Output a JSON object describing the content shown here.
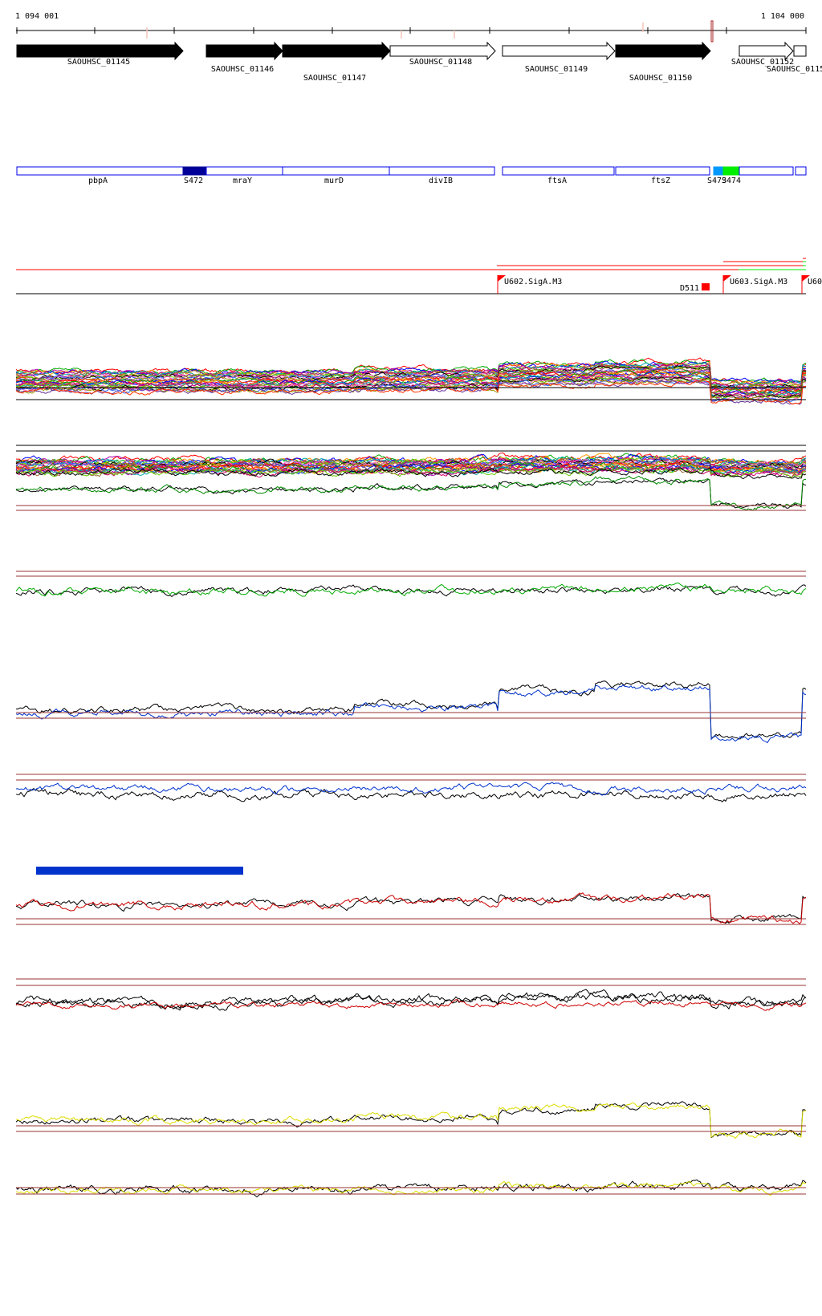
{
  "ruler": {
    "start_label": "1 094 001",
    "end_label": "1 104 000"
  },
  "genes": [
    {
      "label": "SAOUHSC_01145",
      "strand": "filled"
    },
    {
      "label": "SAOUHSC_01146",
      "strand": "filled"
    },
    {
      "label": "SAOUHSC_01147",
      "strand": "filled"
    },
    {
      "label": "SAOUHSC_01148",
      "strand": "open"
    },
    {
      "label": "SAOUHSC_01149",
      "strand": "open"
    },
    {
      "label": "SAOUHSC_01150",
      "strand": "filled"
    },
    {
      "label": "SAOUHSC_01152",
      "strand": "open"
    },
    {
      "label": "SAOUHSC_0115",
      "strand": "open"
    }
  ],
  "features": [
    {
      "label": "pbpA",
      "color": "#ffffff"
    },
    {
      "label": "S472",
      "color": "#000099"
    },
    {
      "label": "mraY",
      "color": "#ffffff"
    },
    {
      "label": "murD",
      "color": "#ffffff"
    },
    {
      "label": "divIB",
      "color": "#ffffff"
    },
    {
      "label": "ftsA",
      "color": "#ffffff"
    },
    {
      "label": "ftsZ",
      "color": "#ffffff"
    },
    {
      "label": "S473",
      "color": "#0099ff"
    },
    {
      "label": "S474",
      "color": "#00ee00"
    },
    {
      "label": "",
      "color": "#ffffff"
    },
    {
      "label": "",
      "color": "#ffffff"
    }
  ],
  "promoters": [
    {
      "label": "U602.SigA.M3"
    },
    {
      "label": "U603.SigA.M3"
    },
    {
      "label": "U60"
    }
  ],
  "terminator": {
    "label": "D511"
  },
  "colors": {
    "feature_border": "#0000ee",
    "threshold": "#993333",
    "flag": "#ff0000"
  }
}
